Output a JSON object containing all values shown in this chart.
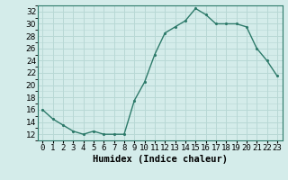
{
  "x": [
    0,
    1,
    2,
    3,
    4,
    5,
    6,
    7,
    8,
    9,
    10,
    11,
    12,
    13,
    14,
    15,
    16,
    17,
    18,
    19,
    20,
    21,
    22,
    23
  ],
  "y": [
    16,
    14.5,
    13.5,
    12.5,
    12,
    12.5,
    12,
    12,
    12,
    17.5,
    20.5,
    25,
    28.5,
    29.5,
    30.5,
    32.5,
    31.5,
    30,
    30,
    30,
    29.5,
    26,
    24,
    21.5
  ],
  "line_color": "#2d7a6a",
  "marker_color": "#2d7a6a",
  "bg_color": "#d4ecea",
  "grid_color": "#b8d8d5",
  "xlabel": "Humidex (Indice chaleur)",
  "xlim": [
    -0.5,
    23.5
  ],
  "ylim": [
    11,
    33
  ],
  "yticks": [
    12,
    14,
    16,
    18,
    20,
    22,
    24,
    26,
    28,
    30,
    32
  ],
  "xticks": [
    0,
    1,
    2,
    3,
    4,
    5,
    6,
    7,
    8,
    9,
    10,
    11,
    12,
    13,
    14,
    15,
    16,
    17,
    18,
    19,
    20,
    21,
    22,
    23
  ],
  "xtick_labels": [
    "0",
    "1",
    "2",
    "3",
    "4",
    "5",
    "6",
    "7",
    "8",
    "9",
    "10",
    "11",
    "12",
    "13",
    "14",
    "15",
    "16",
    "17",
    "18",
    "19",
    "20",
    "21",
    "22",
    "23"
  ],
  "tick_fontsize": 6.5,
  "xlabel_fontsize": 7.5,
  "marker_size": 2.5,
  "line_width": 1.0
}
